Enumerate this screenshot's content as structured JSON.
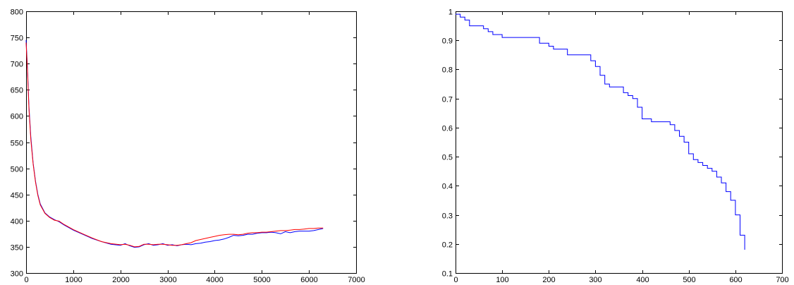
{
  "chart_data": [
    {
      "type": "line",
      "title": "",
      "xlabel": "",
      "ylabel": "",
      "xlim": [
        0,
        7000
      ],
      "ylim": [
        300,
        800
      ],
      "xticks": [
        0,
        1000,
        2000,
        3000,
        4000,
        5000,
        6000,
        7000
      ],
      "yticks": [
        300,
        350,
        400,
        450,
        500,
        550,
        600,
        650,
        700,
        750,
        800
      ],
      "grid": false,
      "series": [
        {
          "color": "#0000ff",
          "x": [
            0,
            30,
            60,
            100,
            150,
            200,
            250,
            300,
            400,
            500,
            600,
            700,
            800,
            900,
            1000,
            1200,
            1400,
            1600,
            1800,
            2000,
            2100,
            2200,
            2300,
            2400,
            2500,
            2600,
            2700,
            2800,
            2900,
            3000,
            3100,
            3200,
            3300,
            3400,
            3500,
            3600,
            3700,
            3800,
            3900,
            4000,
            4100,
            4200,
            4300,
            4400,
            4500,
            4600,
            4700,
            4800,
            4900,
            5000,
            5100,
            5200,
            5300,
            5400,
            5500,
            5600,
            5700,
            5800,
            5900,
            6000,
            6100,
            6200,
            6300
          ],
          "y": [
            745,
            690,
            620,
            560,
            510,
            475,
            450,
            432,
            415,
            407,
            402,
            398,
            392,
            387,
            382,
            374,
            366,
            360,
            355,
            353,
            356,
            352,
            349,
            350,
            354,
            356,
            353,
            354,
            356,
            353,
            354,
            352,
            354,
            355,
            354,
            356,
            357,
            359,
            360,
            362,
            363,
            365,
            368,
            372,
            371,
            372,
            374,
            374,
            376,
            377,
            377,
            378,
            377,
            375,
            379,
            377,
            379,
            380,
            380,
            380,
            381,
            383,
            385
          ]
        },
        {
          "color": "#ff0000",
          "x": [
            0,
            30,
            60,
            100,
            150,
            200,
            250,
            300,
            400,
            500,
            600,
            700,
            800,
            900,
            1000,
            1200,
            1400,
            1600,
            1800,
            2000,
            2100,
            2200,
            2300,
            2400,
            2500,
            2600,
            2700,
            2800,
            2900,
            3000,
            3100,
            3200,
            3300,
            3400,
            3500,
            3600,
            3700,
            3800,
            3900,
            4000,
            4100,
            4200,
            4300,
            4400,
            4500,
            4600,
            4700,
            4800,
            4900,
            5000,
            5100,
            5200,
            5300,
            5400,
            5500,
            5600,
            5700,
            5800,
            5900,
            6000,
            6100,
            6200,
            6300
          ],
          "y": [
            740,
            685,
            615,
            555,
            508,
            473,
            448,
            430,
            414,
            406,
            401,
            399,
            393,
            388,
            383,
            375,
            367,
            360,
            356,
            354,
            355,
            353,
            350,
            351,
            355,
            355,
            354,
            355,
            355,
            354,
            353,
            353,
            354,
            356,
            358,
            362,
            364,
            366,
            368,
            370,
            372,
            373,
            374,
            374,
            373,
            374,
            376,
            377,
            377,
            378,
            378,
            379,
            380,
            381,
            381,
            382,
            383,
            383,
            384,
            385,
            385,
            386,
            386
          ]
        }
      ]
    },
    {
      "type": "line",
      "title": "",
      "xlabel": "",
      "ylabel": "",
      "xlim": [
        0,
        700
      ],
      "ylim": [
        0.1,
        1
      ],
      "xticks": [
        0,
        100,
        200,
        300,
        400,
        500,
        600,
        700
      ],
      "yticks": [
        0.1,
        0.2,
        0.3,
        0.4,
        0.5,
        0.6,
        0.7,
        0.8,
        0.9,
        1
      ],
      "grid": false,
      "step": true,
      "series": [
        {
          "color": "#0000ff",
          "x": [
            0,
            10,
            20,
            30,
            60,
            70,
            80,
            100,
            180,
            200,
            210,
            220,
            240,
            260,
            290,
            300,
            310,
            320,
            330,
            340,
            360,
            370,
            380,
            390,
            400,
            420,
            460,
            470,
            480,
            490,
            500,
            510,
            520,
            530,
            540,
            550,
            560,
            570,
            580,
            590,
            600,
            610,
            620
          ],
          "y": [
            0.99,
            0.98,
            0.97,
            0.95,
            0.94,
            0.93,
            0.92,
            0.91,
            0.89,
            0.88,
            0.87,
            0.87,
            0.85,
            0.85,
            0.83,
            0.81,
            0.78,
            0.75,
            0.74,
            0.74,
            0.72,
            0.71,
            0.7,
            0.67,
            0.63,
            0.62,
            0.61,
            0.59,
            0.57,
            0.55,
            0.51,
            0.49,
            0.48,
            0.47,
            0.46,
            0.45,
            0.43,
            0.41,
            0.38,
            0.35,
            0.3,
            0.23,
            0.18
          ]
        }
      ]
    }
  ]
}
